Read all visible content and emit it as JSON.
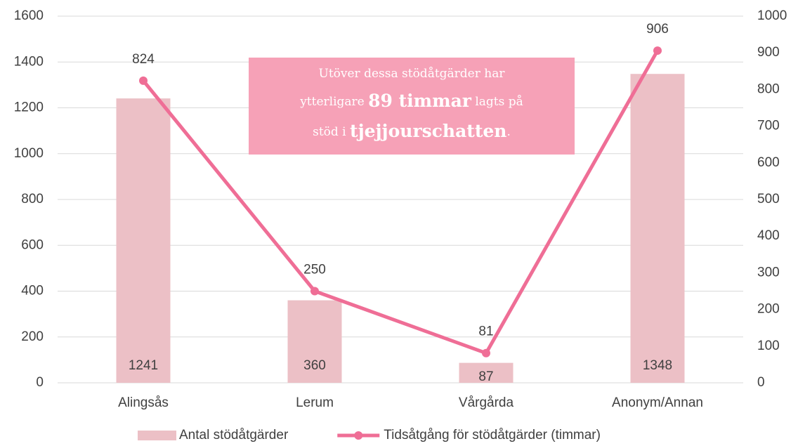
{
  "chart_data": {
    "type": "combo",
    "categories": [
      "Alingsås",
      "Lerum",
      "Vårgårda",
      "Anonym/Annan"
    ],
    "series": [
      {
        "name": "Antal stödåtgärder",
        "type": "bar",
        "color": "#ecc0c6",
        "values": [
          1241,
          360,
          87,
          1348
        ]
      },
      {
        "name": "Tidsåtgång för stödåtgärder (timmar)",
        "type": "line",
        "axis": "y2",
        "color": "#ef6e96",
        "values": [
          824,
          250,
          81,
          906
        ]
      }
    ],
    "ylim": [
      0,
      1600
    ],
    "yticks": [
      0,
      200,
      400,
      600,
      800,
      1000,
      1200,
      1400,
      1600
    ],
    "y2lim": [
      0,
      1000
    ],
    "y2ticks": [
      0,
      100,
      200,
      300,
      400,
      500,
      600,
      700,
      800,
      900,
      1000
    ],
    "grid": true,
    "legend": "bottom",
    "annotation": {
      "box_color": "#f6a1b7",
      "line1": "Utöver dessa stödåtgärder har",
      "line2a": "ytterligare ",
      "line2b": "89 timmar",
      "line2c": " lagts på",
      "line3a": "stöd i ",
      "line3b": "tjejjourschatten",
      "line3c": "."
    }
  }
}
